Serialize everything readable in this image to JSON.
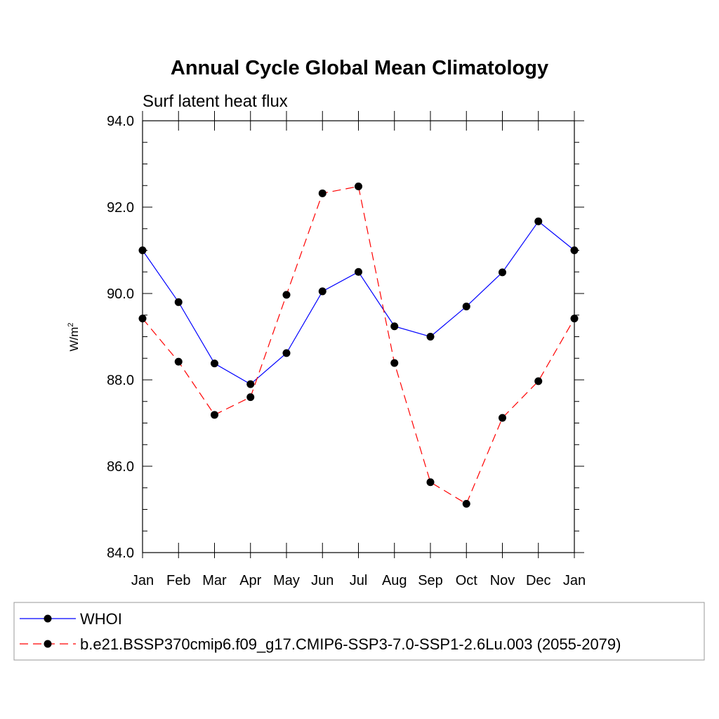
{
  "chart_data": {
    "type": "line",
    "title": "Annual Cycle Global Mean Climatology",
    "subtitle": "Surf latent heat flux",
    "ylabel": "W/m",
    "ylabel_sup": "2",
    "xlabel": "",
    "categories": [
      "Jan",
      "Feb",
      "Mar",
      "Apr",
      "May",
      "Jun",
      "Jul",
      "Aug",
      "Sep",
      "Oct",
      "Nov",
      "Dec",
      "Jan"
    ],
    "ylim": [
      84.0,
      94.0
    ],
    "yticks": [
      84.0,
      86.0,
      88.0,
      90.0,
      92.0,
      94.0
    ],
    "ytick_labels": [
      "84.0",
      "86.0",
      "88.0",
      "90.0",
      "92.0",
      "94.0"
    ],
    "ystep_minor": 0.5,
    "legend_position": "bottom",
    "series": [
      {
        "name": "WHOI",
        "color": "#0000ff",
        "dash": "solid",
        "values": [
          91.0,
          89.8,
          88.38,
          87.9,
          88.62,
          90.05,
          90.5,
          89.24,
          89.0,
          89.7,
          90.49,
          91.67,
          91.0
        ]
      },
      {
        "name": "b.e21.BSSP370cmip6.f09_g17.CMIP6-SSP3-7.0-SSP1-2.6Lu.003 (2055-2079)",
        "color": "#ff0000",
        "dash": "dashed",
        "values": [
          89.42,
          88.42,
          87.19,
          87.6,
          89.97,
          92.32,
          92.48,
          88.39,
          85.63,
          85.13,
          87.12,
          87.97,
          89.42
        ]
      }
    ]
  }
}
